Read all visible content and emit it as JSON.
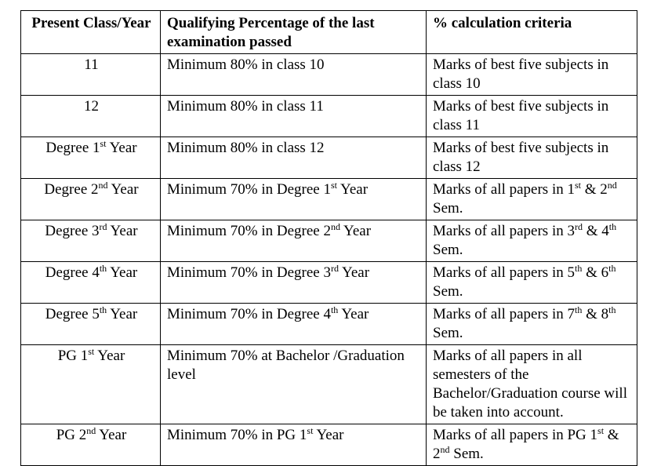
{
  "headers": {
    "class_year": "Present Class/Year",
    "qualifying": "Qualifying Percentage of the last examination passed",
    "criteria": "% calculation criteria"
  },
  "rows": [
    {
      "class_year": "11",
      "qualifying": "Minimum 80%  in class 10",
      "criteria": "Marks of best five subjects in class 10"
    },
    {
      "class_year": "12",
      "qualifying": "Minimum 80% in class 11",
      "criteria": "Marks of best five subjects in class 11"
    },
    {
      "class_year": "Degree 1^st Year",
      "qualifying": "Minimum 80% in class 12",
      "criteria": "Marks of best five subjects in class 12"
    },
    {
      "class_year": "Degree 2^nd Year",
      "qualifying": "Minimum 70% in Degree 1^st Year",
      "criteria": "Marks of all papers in 1^st & 2^nd Sem."
    },
    {
      "class_year": "Degree 3^rd Year",
      "qualifying": "Minimum 70% in Degree 2^nd Year",
      "criteria": "Marks of all papers in 3^rd & 4^th Sem."
    },
    {
      "class_year": "Degree 4^th Year",
      "qualifying": "Minimum 70% in Degree 3^rd Year",
      "criteria": "Marks of all papers in 5^th & 6^th Sem."
    },
    {
      "class_year": "Degree 5^th Year",
      "qualifying": "Minimum 70% in Degree 4^th Year",
      "criteria": "Marks of all papers in 7^th & 8^th Sem."
    },
    {
      "class_year": "PG 1^st Year",
      "qualifying": "Minimum 70% at Bachelor /Graduation level",
      "criteria": "Marks of all papers in all semesters of the Bachelor/Graduation course will be taken into account."
    },
    {
      "class_year": "PG 2^nd Year",
      "qualifying": "Minimum 70% in PG 1^st Year",
      "criteria": "Marks of all papers in PG 1^st & 2^nd Sem."
    }
  ]
}
